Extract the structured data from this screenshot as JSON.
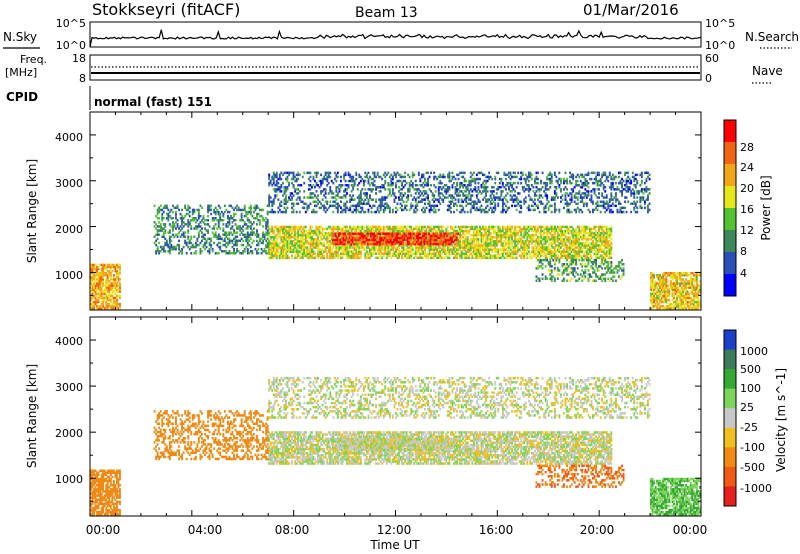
{
  "header": {
    "station": "Stokkseyri (fitACF)",
    "beam": "Beam 13",
    "date": "01/Mar/2016"
  },
  "noise_panel": {
    "left_label": "N.Sky",
    "right_label": "N.Search",
    "ticks_left": [
      "10^5",
      "10^0"
    ],
    "ticks_right": [
      "10^5",
      "10^0"
    ]
  },
  "freq_panel": {
    "left_label": "Freq.",
    "left_unit": "[MHz]",
    "ticks_left": [
      "18",
      "8"
    ],
    "ticks_right": [
      "60",
      "0"
    ],
    "right_label": "Nave",
    "cpid_label": "CPID",
    "cpid_text": "normal (fast) 151"
  },
  "power_panel": {
    "ylabel": "Slant Range [km]",
    "ytick_labels": [
      "4000",
      "3000",
      "2000",
      "1000"
    ],
    "colorbar_label": "Power [dB]",
    "colorbar_ticks": [
      "28",
      "24",
      "20",
      "16",
      "12",
      "8",
      "4"
    ],
    "colors": [
      "#0000ff",
      "#2a4fb8",
      "#3c8a5a",
      "#52c234",
      "#e6e61a",
      "#f2a61a",
      "#f26414",
      "#ff0000"
    ]
  },
  "velocity_panel": {
    "ylabel": "Slant Range [km]",
    "ytick_labels": [
      "4000",
      "3000",
      "2000",
      "1000"
    ],
    "colorbar_label": "Velocity [m s^-1]",
    "colorbar_ticks": [
      "1000",
      "500",
      "100",
      "25",
      "-25",
      "-100",
      "-500",
      "-1000"
    ],
    "colors": [
      "#1a3fcc",
      "#3b7a5a",
      "#33a833",
      "#7dd65a",
      "#c8c8c8",
      "#f0c020",
      "#f08a14",
      "#f05a14",
      "#e61e1e"
    ]
  },
  "xaxis": {
    "label": "Time UT",
    "tick_labels": [
      "00:00",
      "04:00",
      "08:00",
      "12:00",
      "16:00",
      "20:00",
      "00:00"
    ]
  },
  "chart_data": {
    "type": "heatmap",
    "title": "Stokkseyri (fitACF)",
    "subtitle": "Beam 13  01/Mar/2016",
    "xlabel": "Time UT",
    "ylabel": "Slant Range [km]",
    "x_range_hours": [
      0,
      24
    ],
    "y_range_km": [
      180,
      4500
    ],
    "power_colorbar": {
      "label": "Power [dB]",
      "range_db": [
        0,
        32
      ],
      "ticks": [
        4,
        8,
        12,
        16,
        20,
        24,
        28
      ]
    },
    "velocity_colorbar": {
      "label": "Velocity [m s^-1]",
      "ticks": [
        -1000,
        -500,
        -100,
        -25,
        25,
        100,
        500,
        1000
      ]
    },
    "echo_regions": [
      {
        "t_start": 7.0,
        "t_end": 20.5,
        "r_min": 1300,
        "r_max": 2000,
        "power_db": 18,
        "velocity": 0
      },
      {
        "t_start": 9.5,
        "t_end": 14.5,
        "r_min": 1600,
        "r_max": 1850,
        "power_db": 28,
        "velocity": 0
      },
      {
        "t_start": 0.0,
        "t_end": 1.2,
        "r_min": 200,
        "r_max": 1200,
        "power_db": 22,
        "velocity": -300
      },
      {
        "t_start": 22.0,
        "t_end": 24.0,
        "r_min": 200,
        "r_max": 1000,
        "power_db": 20,
        "velocity": 100
      },
      {
        "t_start": 2.5,
        "t_end": 7.0,
        "r_min": 1400,
        "r_max": 2500,
        "power_db": 10,
        "velocity": -200
      },
      {
        "t_start": 7.0,
        "t_end": 22.0,
        "r_min": 2300,
        "r_max": 3200,
        "power_db": 8,
        "velocity": 0
      },
      {
        "t_start": 17.5,
        "t_end": 21.0,
        "r_min": 800,
        "r_max": 1300,
        "power_db": 12,
        "velocity": -500
      }
    ]
  }
}
